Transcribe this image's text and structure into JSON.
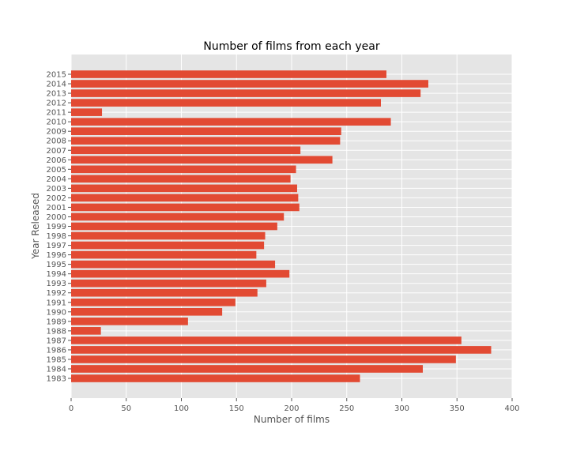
{
  "colors": {
    "bar": "#e24a33",
    "plot_background": "#e5e5e5",
    "grid": "#ffffff",
    "tick_text": "#555555",
    "title_text": "#000000"
  },
  "chart_data": {
    "type": "bar",
    "orientation": "horizontal",
    "title": "Number of films from each year",
    "xlabel": "Number of films",
    "ylabel": "Year Released",
    "xlim": [
      0,
      400
    ],
    "xticks": [
      0,
      50,
      100,
      150,
      200,
      250,
      300,
      350,
      400
    ],
    "grid": true,
    "categories": [
      "1983",
      "1984",
      "1985",
      "1986",
      "1987",
      "1988",
      "1989",
      "1990",
      "1991",
      "1992",
      "1993",
      "1994",
      "1995",
      "1996",
      "1997",
      "1998",
      "1999",
      "2000",
      "2001",
      "2002",
      "2003",
      "2004",
      "2005",
      "2006",
      "2007",
      "2008",
      "2009",
      "2010",
      "2011",
      "2012",
      "2013",
      "2014",
      "2015"
    ],
    "values": [
      262,
      319,
      349,
      381,
      354,
      27,
      106,
      137,
      149,
      169,
      177,
      198,
      185,
      168,
      175,
      176,
      187,
      193,
      207,
      206,
      205,
      199,
      204,
      237,
      208,
      244,
      245,
      290,
      28,
      281,
      317,
      324,
      286
    ]
  }
}
